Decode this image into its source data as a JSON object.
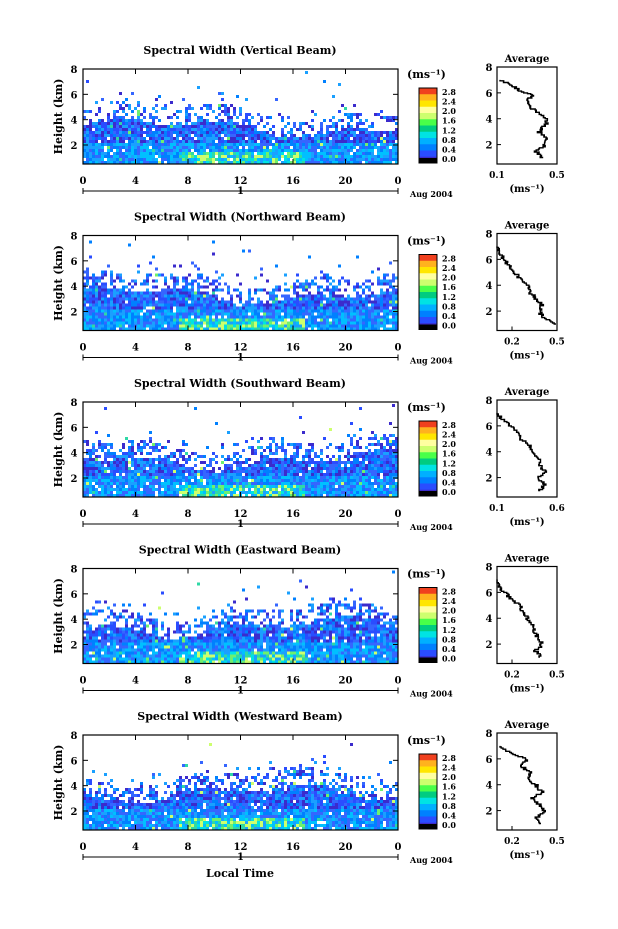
{
  "chart_data": {
    "type": "heatmap",
    "xlabel": "Local Time",
    "date_label": "Aug 2004",
    "day_label": "1",
    "x_ticks": [
      "0",
      "4",
      "8",
      "12",
      "16",
      "20",
      "0"
    ],
    "ylabel": "Height (km)",
    "ylim": [
      0.5,
      8
    ],
    "y_ticks": [
      "2",
      "4",
      "6",
      "8"
    ],
    "colorbar": {
      "unit": "(ms⁻¹)",
      "ticks": [
        "2.8",
        "2.4",
        "2.0",
        "1.6",
        "1.2",
        "0.8",
        "0.4",
        "0.0"
      ],
      "colors": [
        "#f0401e",
        "#ffb21e",
        "#ffe600",
        "#ffffa0",
        "#cdff6e",
        "#49ff49",
        "#00cc80",
        "#00e3e3",
        "#00b0ff",
        "#0080ff",
        "#2a4dff",
        "#3b2bcc"
      ]
    },
    "panels": [
      {
        "title": "Spectral Width (Vertical Beam)",
        "avg": {
          "title": "Average",
          "xticks": [
            "0.1",
            "0.5"
          ],
          "xlim": [
            0.1,
            0.5
          ],
          "xunit": "(ms⁻¹)",
          "profile": [
            [
              0.4,
              1.0
            ],
            [
              0.36,
              1.5
            ],
            [
              0.42,
              2.0
            ],
            [
              0.44,
              2.5
            ],
            [
              0.38,
              3.0
            ],
            [
              0.42,
              3.5
            ],
            [
              0.44,
              4.0
            ],
            [
              0.37,
              4.5
            ],
            [
              0.32,
              5.0
            ],
            [
              0.3,
              5.5
            ],
            [
              0.34,
              5.8
            ],
            [
              0.25,
              6.2
            ],
            [
              0.2,
              6.6
            ],
            [
              0.12,
              7.0
            ]
          ]
        }
      },
      {
        "title": "Spectral Width (Northward Beam)",
        "avg": {
          "title": "Average",
          "xticks": [
            "0.2",
            "0.5"
          ],
          "xlim": [
            0.1,
            0.5
          ],
          "xunit": "(ms⁻¹)",
          "profile": [
            [
              0.5,
              1.0
            ],
            [
              0.42,
              1.5
            ],
            [
              0.38,
              2.0
            ],
            [
              0.4,
              2.5
            ],
            [
              0.36,
              3.0
            ],
            [
              0.32,
              3.5
            ],
            [
              0.3,
              4.0
            ],
            [
              0.26,
              4.5
            ],
            [
              0.22,
              5.0
            ],
            [
              0.18,
              5.5
            ],
            [
              0.15,
              6.0
            ],
            [
              0.12,
              6.5
            ],
            [
              0.1,
              7.0
            ]
          ]
        }
      },
      {
        "title": "Spectral Width (Southward Beam)",
        "avg": {
          "title": "Average",
          "xticks": [
            "0.1",
            "0.6"
          ],
          "xlim": [
            0.1,
            0.6
          ],
          "xunit": "(ms⁻¹)",
          "profile": [
            [
              0.45,
              1.0
            ],
            [
              0.5,
              1.5
            ],
            [
              0.44,
              2.0
            ],
            [
              0.5,
              2.5
            ],
            [
              0.46,
              3.0
            ],
            [
              0.45,
              3.5
            ],
            [
              0.4,
              4.0
            ],
            [
              0.38,
              4.5
            ],
            [
              0.3,
              5.0
            ],
            [
              0.28,
              5.5
            ],
            [
              0.22,
              6.0
            ],
            [
              0.15,
              6.5
            ],
            [
              0.1,
              7.0
            ]
          ]
        }
      },
      {
        "title": "Spectral Width (Eastward Beam)",
        "avg": {
          "title": "Average",
          "xticks": [
            "0.2",
            "0.5"
          ],
          "xlim": [
            0.1,
            0.5
          ],
          "xunit": "(ms⁻¹)",
          "profile": [
            [
              0.4,
              1.0
            ],
            [
              0.36,
              1.5
            ],
            [
              0.4,
              2.0
            ],
            [
              0.38,
              2.5
            ],
            [
              0.35,
              3.0
            ],
            [
              0.34,
              3.5
            ],
            [
              0.3,
              4.0
            ],
            [
              0.28,
              4.5
            ],
            [
              0.25,
              5.0
            ],
            [
              0.2,
              5.5
            ],
            [
              0.15,
              6.0
            ],
            [
              0.12,
              6.5
            ],
            [
              0.1,
              7.0
            ]
          ]
        }
      },
      {
        "title": "Spectral Width (Westward Beam)",
        "avg": {
          "title": "Average",
          "xticks": [
            "0.2",
            "0.5"
          ],
          "xlim": [
            0.1,
            0.5
          ],
          "xunit": "(ms⁻¹)",
          "profile": [
            [
              0.4,
              1.0
            ],
            [
              0.36,
              1.5
            ],
            [
              0.42,
              2.0
            ],
            [
              0.38,
              2.5
            ],
            [
              0.34,
              3.0
            ],
            [
              0.4,
              3.5
            ],
            [
              0.36,
              4.0
            ],
            [
              0.3,
              4.5
            ],
            [
              0.32,
              5.0
            ],
            [
              0.26,
              5.5
            ],
            [
              0.3,
              6.0
            ],
            [
              0.2,
              6.5
            ],
            [
              0.12,
              7.0
            ]
          ]
        }
      }
    ]
  }
}
